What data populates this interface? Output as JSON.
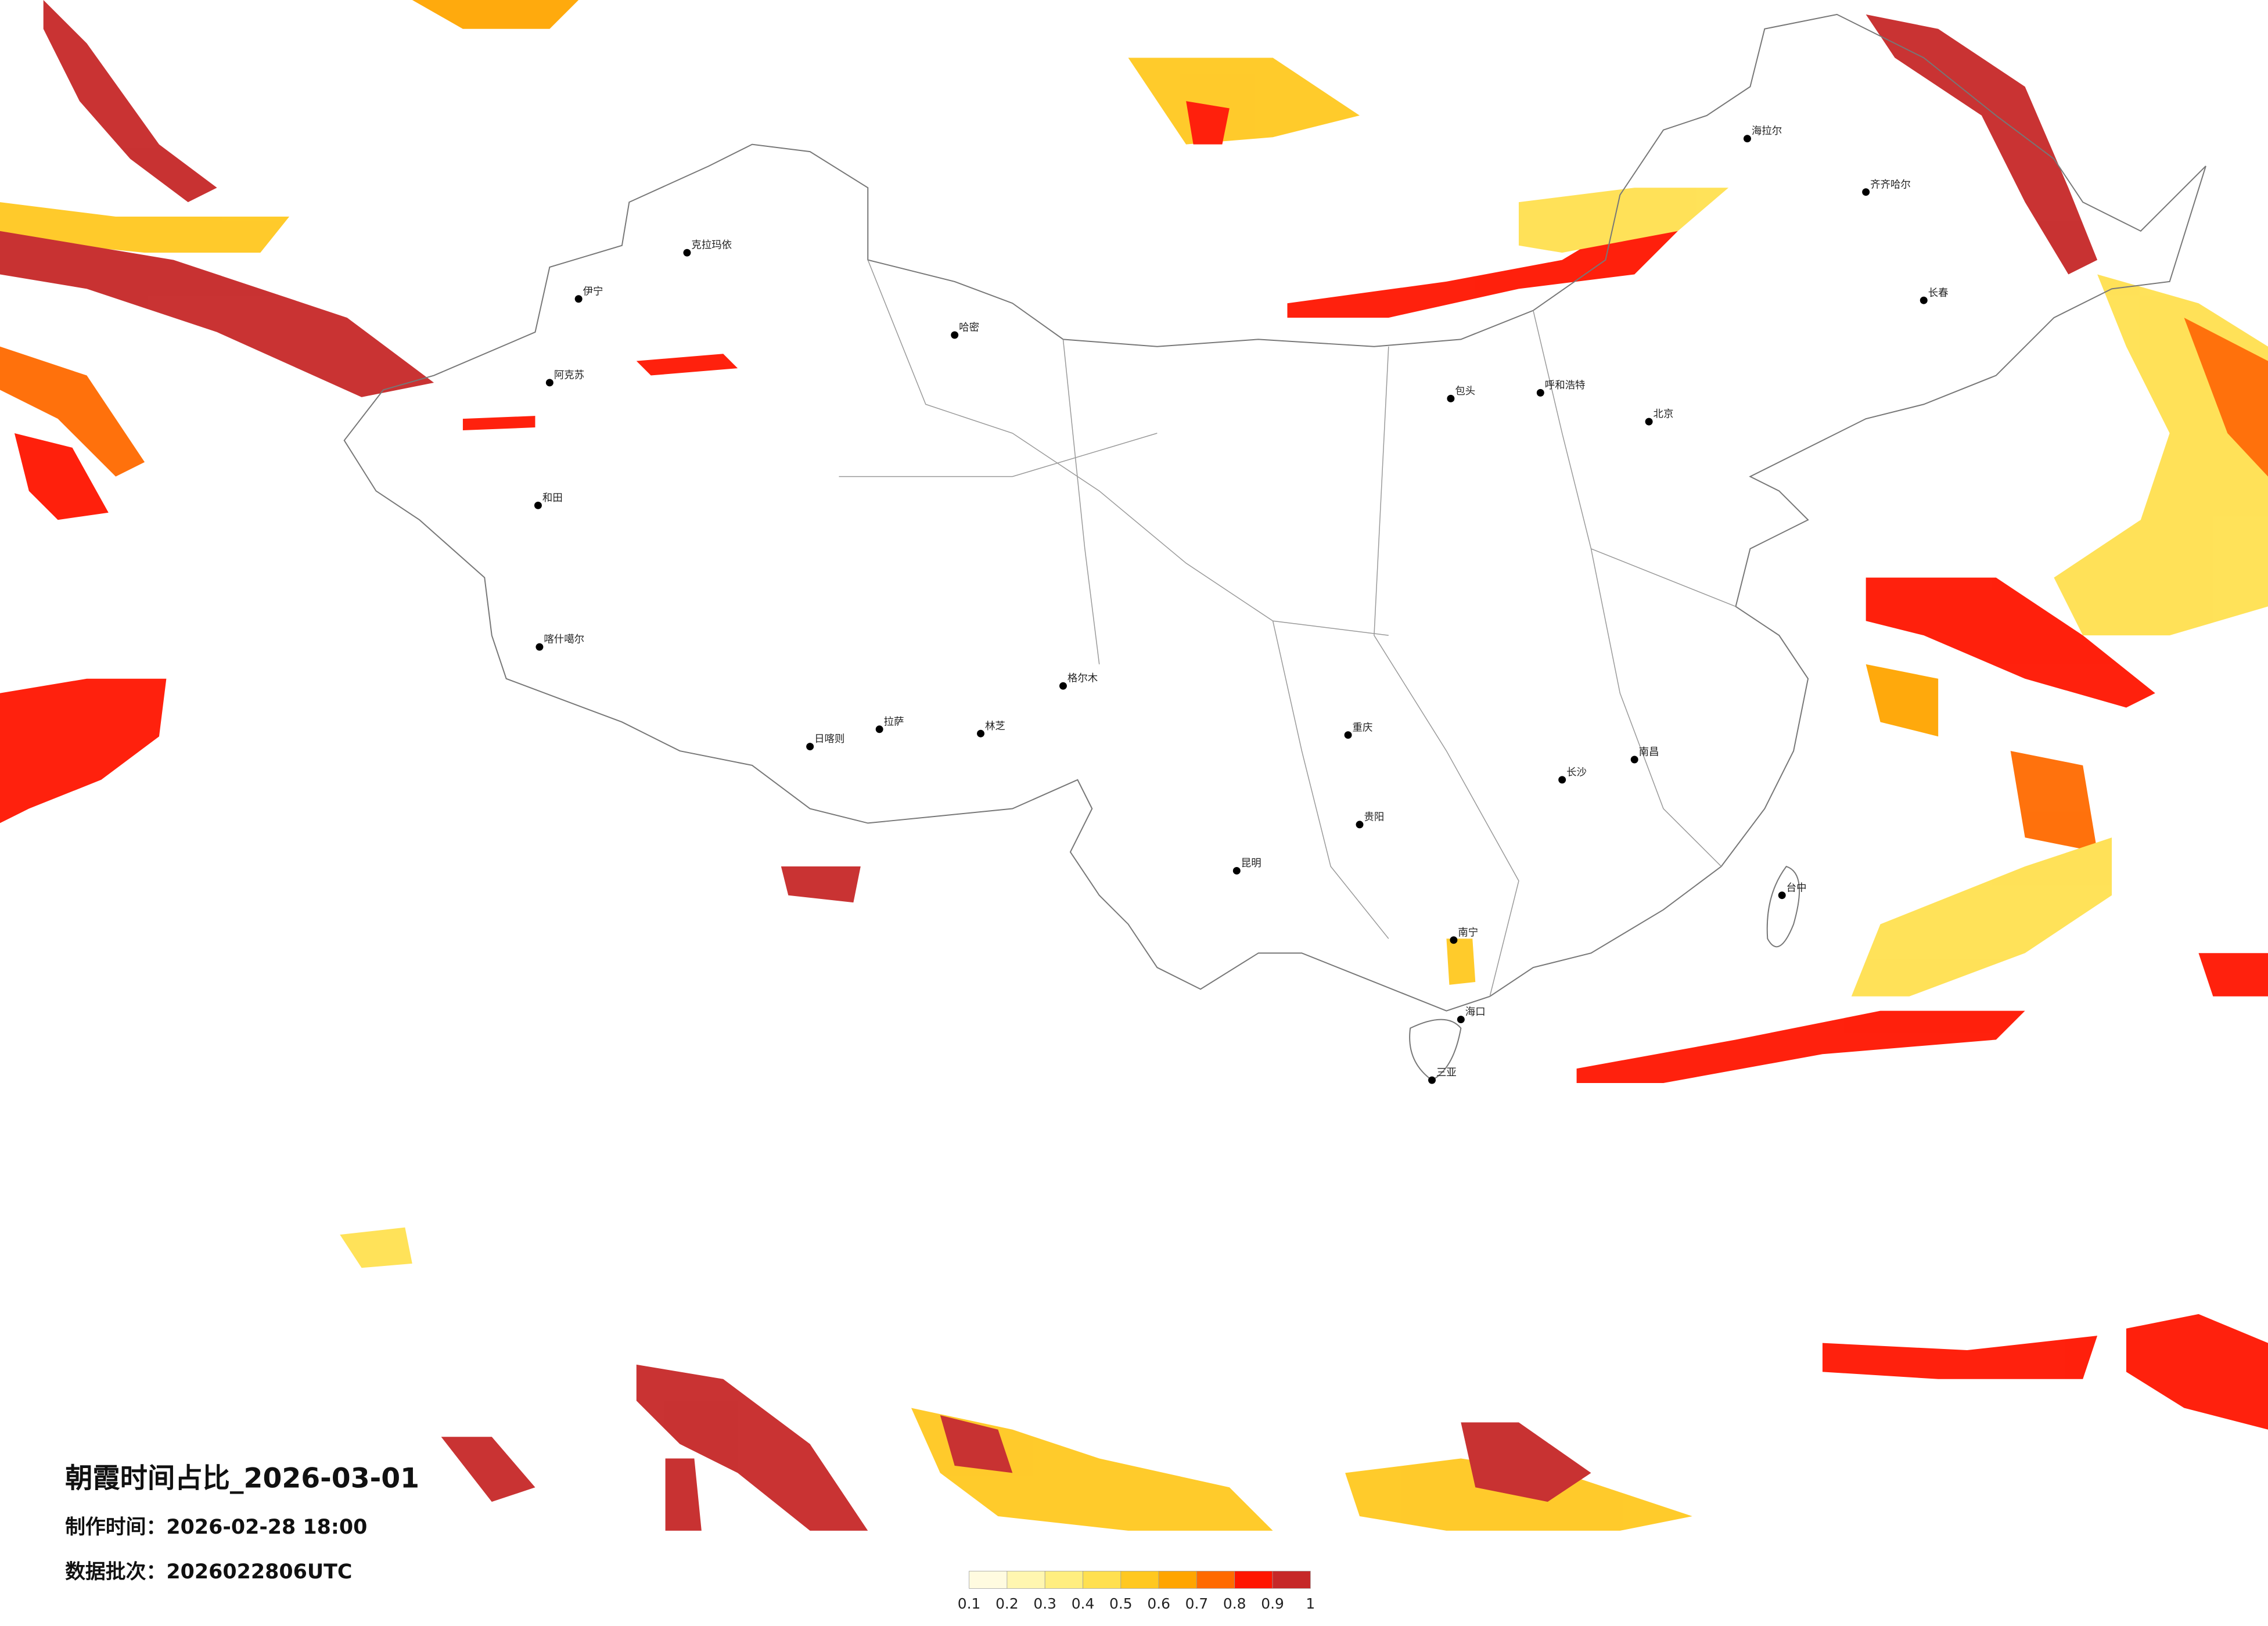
{
  "map": {
    "title": "朝霞时间占比_2026-03-01",
    "made": "制作时间：2026-02-28 18:00",
    "batch": "数据批次：2026022806UTC",
    "legend": {
      "ticks": [
        0.1,
        0.2,
        0.3,
        0.4,
        0.5,
        0.6,
        0.7,
        0.8,
        0.9,
        1
      ],
      "colors": [
        "#fffbe0",
        "#fff6b0",
        "#ffee80",
        "#ffe050",
        "#ffc820",
        "#ffa500",
        "#ff6a00",
        "#ff1500",
        "#c62828"
      ]
    },
    "cities": [
      "克拉玛依",
      "伊宁",
      "阿克苏",
      "和田",
      "喀什噶尔",
      "哈密",
      "海拉尔",
      "齐齐哈尔",
      "长春",
      "北京",
      "呼和浩特",
      "包头",
      "拉萨",
      "日喀则",
      "林芝",
      "重庆",
      "昆明",
      "贵阳",
      "南宁",
      "海口",
      "三亚",
      "台中",
      "南昌",
      "长沙",
      "格尔木"
    ]
  }
}
